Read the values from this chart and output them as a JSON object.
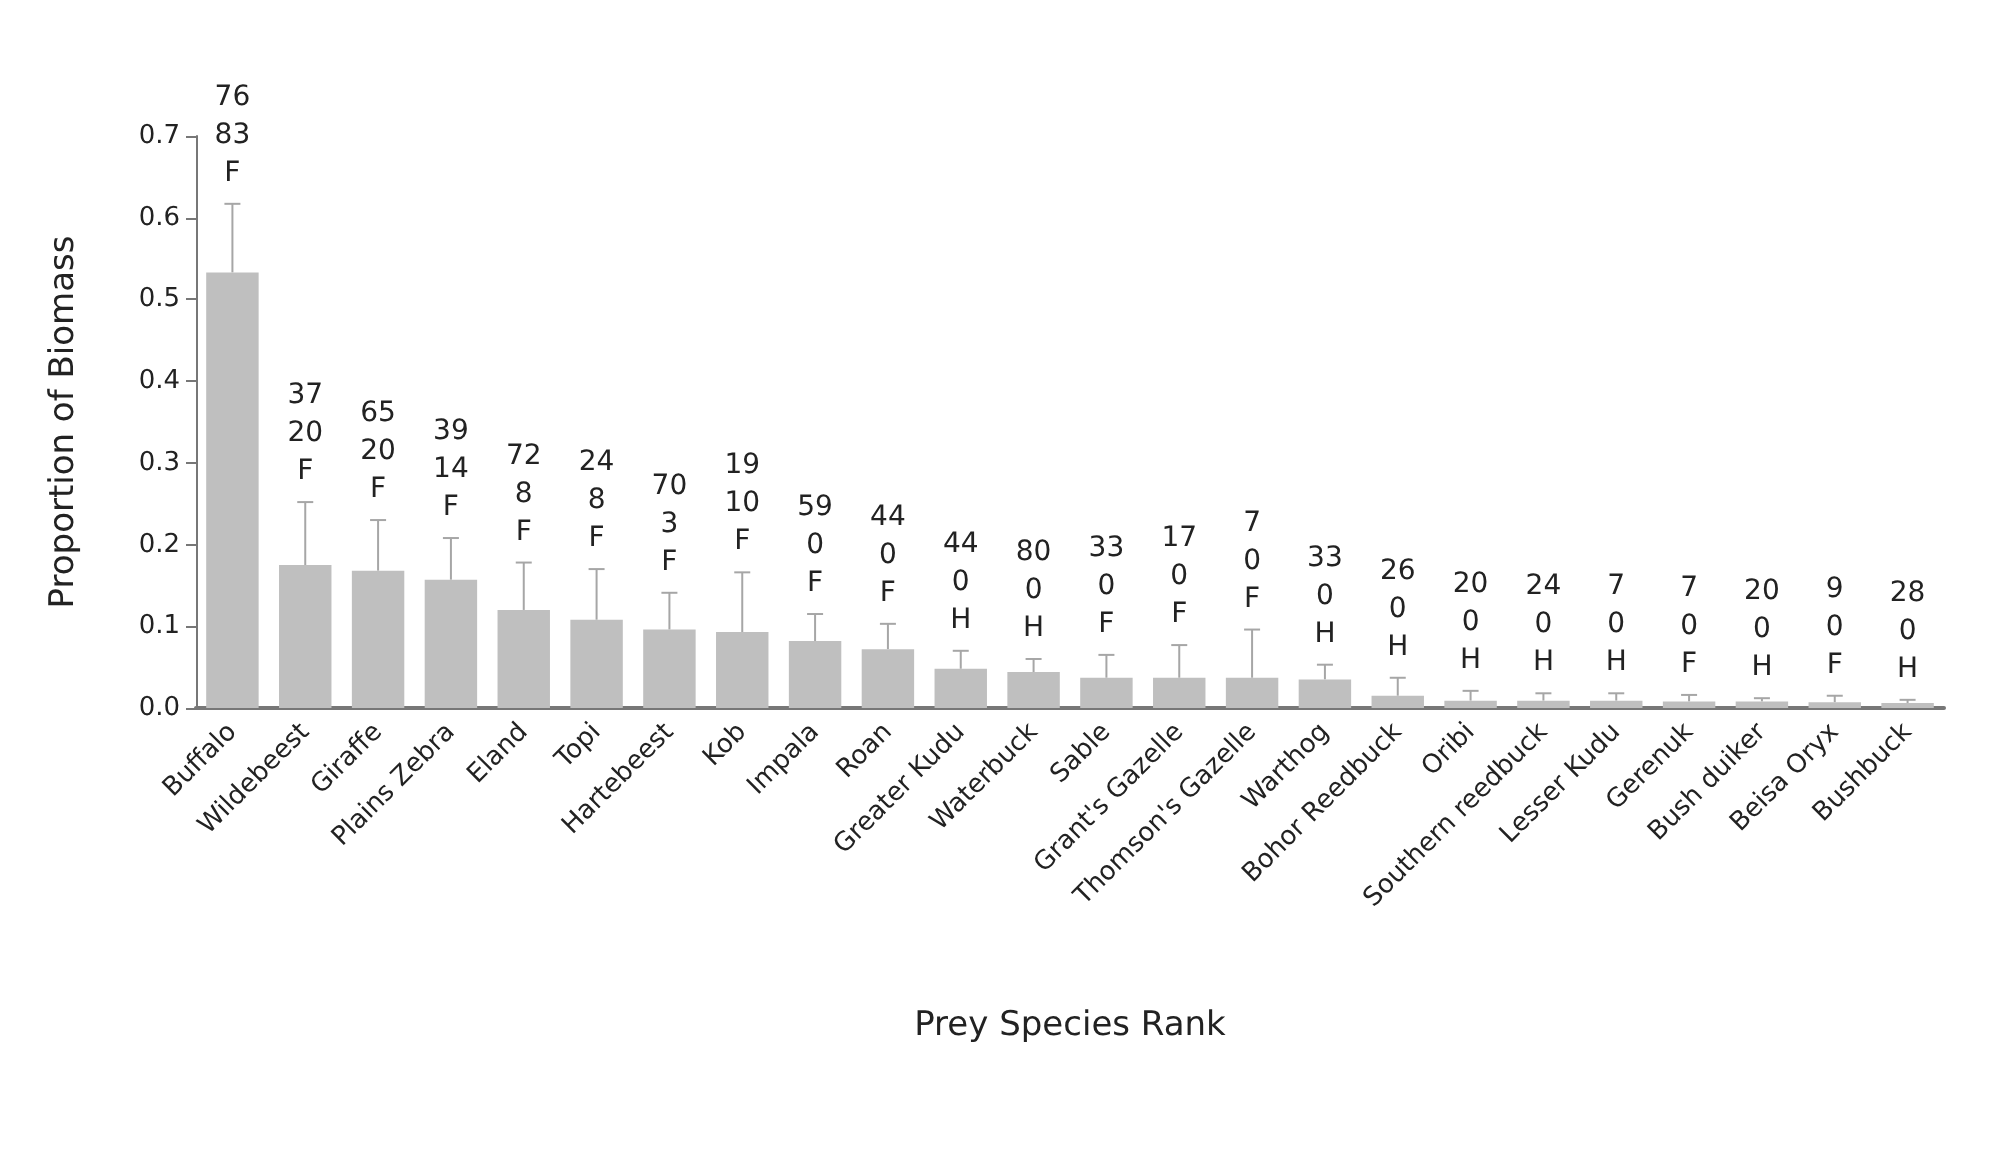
{
  "chart_data": {
    "type": "bar",
    "xlabel": "Prey Species Rank",
    "ylabel": "Proportion of Biomass",
    "categories": [
      "Buffalo",
      "Wildebeest",
      "Giraffe",
      "Plains Zebra",
      "Eland",
      "Topi",
      "Hartebeest",
      "Kob",
      "Impala",
      "Roan",
      "Greater Kudu",
      "Waterbuck",
      "Sable",
      "Grant's Gazelle",
      "Thomson's Gazelle",
      "Warthog",
      "Bohor Reedbuck",
      "Oribi",
      "Southern reedbuck",
      "Lesser Kudu",
      "Gerenuk",
      "Bush duiker",
      "Beisa Oryx",
      "Bushbuck"
    ],
    "values": [
      0.533,
      0.175,
      0.168,
      0.157,
      0.12,
      0.108,
      0.096,
      0.093,
      0.082,
      0.072,
      0.048,
      0.044,
      0.037,
      0.037,
      0.037,
      0.035,
      0.015,
      0.009,
      0.009,
      0.009,
      0.008,
      0.008,
      0.007,
      0.006
    ],
    "errors": [
      [
        0.533,
        0.617
      ],
      [
        0.175,
        0.252
      ],
      [
        0.168,
        0.23
      ],
      [
        0.157,
        0.208
      ],
      [
        0.12,
        0.178
      ],
      [
        0.108,
        0.17
      ],
      [
        0.096,
        0.141
      ],
      [
        0.093,
        0.166
      ],
      [
        0.082,
        0.115
      ],
      [
        0.072,
        0.103
      ],
      [
        0.048,
        0.07
      ],
      [
        0.044,
        0.06
      ],
      [
        0.037,
        0.065
      ],
      [
        0.037,
        0.077
      ],
      [
        0.037,
        0.096
      ],
      [
        0.035,
        0.053
      ],
      [
        0.015,
        0.037
      ],
      [
        0.009,
        0.021
      ],
      [
        0.009,
        0.018
      ],
      [
        0.009,
        0.018
      ],
      [
        0.008,
        0.016
      ],
      [
        0.008,
        0.012
      ],
      [
        0.007,
        0.015
      ],
      [
        0.006,
        0.01
      ]
    ],
    "annotations": [
      {
        "text": "76\n83\nF",
        "x": "Buffalo",
        "y": 0.617
      },
      {
        "text": "37\n20\nF",
        "x": "Wildebeest",
        "y": 0.252
      },
      {
        "text": "65\n20\nF",
        "x": "Giraffe",
        "y": 0.23
      },
      {
        "text": "39\n14\nF",
        "x": "Plains Zebra",
        "y": 0.208
      },
      {
        "text": "72\n8\nF",
        "x": "Eland",
        "y": 0.178
      },
      {
        "text": "24\n8\nF",
        "x": "Topi",
        "y": 0.17
      },
      {
        "text": "70\n3\nF",
        "x": "Hartebeest",
        "y": 0.141
      },
      {
        "text": "19\n10\nF",
        "x": "Kob",
        "y": 0.166
      },
      {
        "text": "59\n0\nF",
        "x": "Impala",
        "y": 0.115
      },
      {
        "text": "44\n0\nF",
        "x": "Roan",
        "y": 0.103
      },
      {
        "text": "44\n0\nH",
        "x": "Greater Kudu",
        "y": 0.07
      },
      {
        "text": "80\n0\nH",
        "x": "Waterbuck",
        "y": 0.06
      },
      {
        "text": "33\n0\nF",
        "x": "Sable",
        "y": 0.065
      },
      {
        "text": "17\n0\nF",
        "x": "Grant's Gazelle",
        "y": 0.077
      },
      {
        "text": "7\n0\nF",
        "x": "Thomson's Gazelle",
        "y": 0.096
      },
      {
        "text": "33\n0\nH",
        "x": "Warthog",
        "y": 0.053
      },
      {
        "text": "26\n0\nH",
        "x": "Bohor Reedbuck",
        "y": 0.037
      },
      {
        "text": "20\n0\nH",
        "x": "Oribi",
        "y": 0.021
      },
      {
        "text": "24\n0\nH",
        "x": "Southern reedbuck",
        "y": 0.018
      },
      {
        "text": "7\n0\nH",
        "x": "Lesser Kudu",
        "y": 0.018
      },
      {
        "text": "7\n0\nF",
        "x": "Gerenuk",
        "y": 0.016
      },
      {
        "text": "20\n0\nH",
        "x": "Bush duiker",
        "y": 0.012
      },
      {
        "text": "9\n0\nF",
        "x": "Beisa Oryx",
        "y": 0.015
      },
      {
        "text": "28\n0\nH",
        "x": "Bushbuck",
        "y": 0.01
      }
    ],
    "color": "#bfbfbf",
    "ylim": [
      0,
      0.7
    ],
    "yticks": [
      {
        "value": 0,
        "label": "0.0"
      },
      0.1,
      0.2,
      0.3,
      0.4,
      0.5,
      0.6,
      0.7
    ],
    "grid": false
  }
}
